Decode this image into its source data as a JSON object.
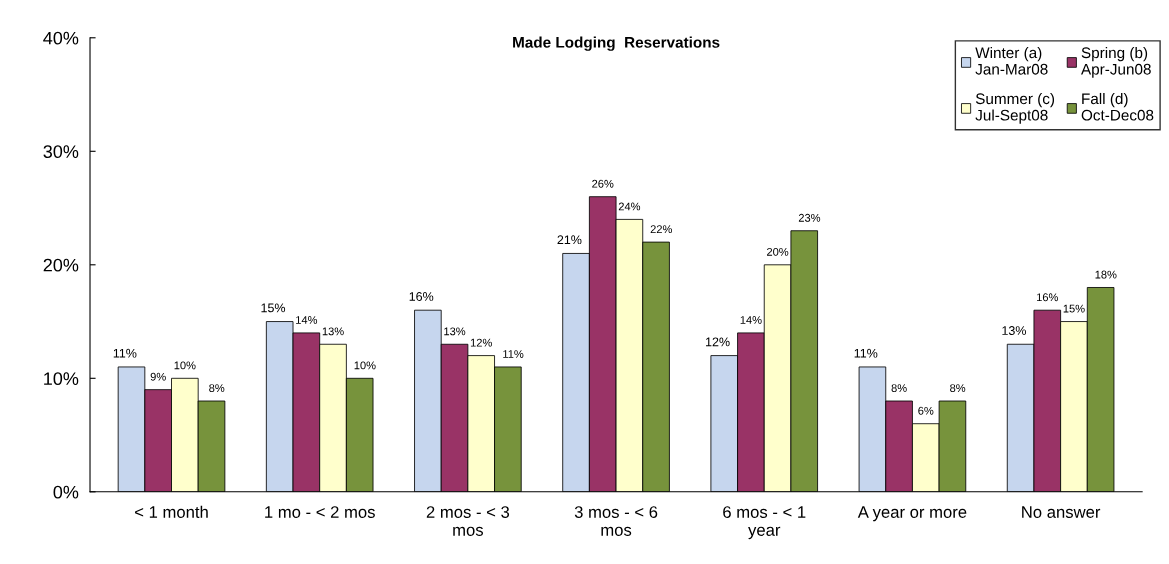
{
  "chart_data": {
    "type": "bar",
    "title": "Made Lodging  Reservations",
    "categories": [
      "< 1 month",
      "1 mo - < 2 mos",
      "2 mos - < 3\nmos",
      "3 mos - < 6\nmos",
      "6 mos - < 1\nyear",
      "A year or more",
      "No answer"
    ],
    "series": [
      {
        "name": "Winter (a)\nJan-Mar08",
        "color": "#c6d6ee",
        "values": [
          11,
          15,
          16,
          21,
          12,
          11,
          13
        ],
        "value_labels": [
          "11%",
          "15%",
          "16%",
          "21%",
          "12%",
          "11%",
          "13%"
        ]
      },
      {
        "name": "Spring (b)\nApr-Jun08",
        "color": "#993366",
        "values": [
          9,
          14,
          13,
          26,
          14,
          8,
          16
        ],
        "value_labels": [
          "9%",
          "14%",
          "13%",
          "26%",
          "14%",
          "8%",
          "16%"
        ]
      },
      {
        "name": "Summer (c)\nJul-Sept08",
        "color": "#ffffcc",
        "values": [
          10,
          13,
          12,
          24,
          20,
          6,
          15
        ],
        "value_labels": [
          "10%",
          "13%",
          "12%",
          "24%",
          "20%",
          "6%",
          "15%"
        ]
      },
      {
        "name": "Fall (d)\nOct-Dec08",
        "color": "#77933c",
        "values": [
          8,
          10,
          11,
          22,
          23,
          8,
          18
        ],
        "value_labels": [
          "8%",
          "10%",
          "11%",
          "22%",
          "23%",
          "8%",
          "18%"
        ]
      }
    ],
    "ylim": [
      0,
      40
    ],
    "yticks": [
      {
        "value": 0,
        "label": "0%"
      },
      {
        "value": 10,
        "label": "10%"
      },
      {
        "value": 20,
        "label": "20%"
      },
      {
        "value": 30,
        "label": "30%"
      },
      {
        "value": 40,
        "label": "40%"
      }
    ],
    "grid": false,
    "legend": "top right"
  }
}
